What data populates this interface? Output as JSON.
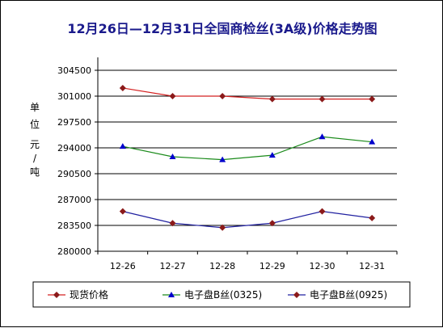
{
  "chart_data": {
    "type": "line",
    "title": "12月26日—12月31日全国商检丝(3A级)价格走势图",
    "ylabel_chars": [
      "单",
      "位",
      "元",
      "/",
      "吨"
    ],
    "categories": [
      "12-26",
      "12-27",
      "12-28",
      "12-29",
      "12-30",
      "12-31"
    ],
    "ylim": [
      280000,
      304500
    ],
    "yticks": [
      280000,
      283500,
      287000,
      290500,
      294000,
      297500,
      301000,
      304500
    ],
    "grid": true,
    "legend_position": "bottom",
    "series": [
      {
        "name": "现货价格",
        "color": "#d42020",
        "marker": "diamond",
        "values": [
          302100,
          301000,
          301000,
          300600,
          300600,
          300600
        ]
      },
      {
        "name": "电子盘B丝(0325)",
        "color": "#1a8a1a",
        "marker": "triangle",
        "values": [
          294200,
          292800,
          292400,
          293000,
          295500,
          294800
        ]
      },
      {
        "name": "电子盘B丝(0925)",
        "color": "#2020a0",
        "marker": "diamond",
        "values": [
          285400,
          283800,
          283200,
          283800,
          285400,
          284500
        ]
      }
    ]
  },
  "colors": {
    "title": "#1a1a8c",
    "marker_dark_red": "#8b1a1a",
    "marker_blue": "#0000cc"
  }
}
